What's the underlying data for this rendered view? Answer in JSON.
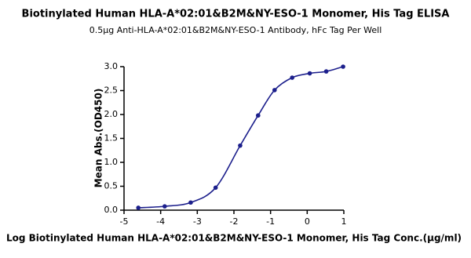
{
  "chart_data": {
    "type": "scatter",
    "title": "Biotinylated Human HLA-A*02:01&B2M&NY-ESO-1 Monomer, His Tag ELISA",
    "subtitle": "0.5μg Anti-HLA-A*02:01&B2M&NY-ESO-1 Antibody, hFc Tag Per Well",
    "x_label": "Log Biotinylated Human HLA-A*02:01&B2M&NY-ESO-1 Monomer, His Tag Conc.(μg/ml)",
    "y_label": "Mean Abs.(OD450)",
    "color": "#1c1f8c",
    "x": [
      -4.61,
      -3.89,
      -3.18,
      -2.5,
      -1.83,
      -1.34,
      -0.89,
      -0.41,
      0.07,
      0.52,
      0.98
    ],
    "values": [
      0.05,
      0.08,
      0.16,
      0.47,
      1.35,
      1.98,
      2.51,
      2.77,
      2.86,
      2.9,
      3.0
    ],
    "xlim": [
      -5,
      1
    ],
    "xticks": [
      -5,
      -4,
      -3,
      -2,
      -1,
      0,
      1
    ],
    "ylim": [
      0,
      3
    ],
    "yticks": [
      {
        "value": 0,
        "label": "0.0"
      },
      0.5,
      {
        "value": 1,
        "label": "1.0"
      },
      1.5,
      {
        "value": 2,
        "label": "2.0"
      },
      2.5,
      {
        "value": 3,
        "label": "3.0"
      }
    ]
  }
}
